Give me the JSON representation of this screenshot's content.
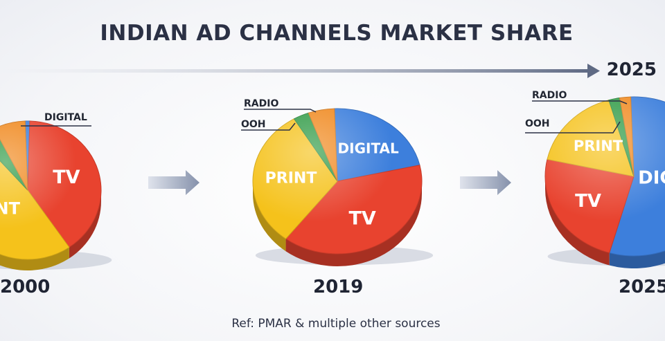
{
  "header": {
    "title": "INDIAN AD CHANNELS MARKET SHARE",
    "timeline_label": "2025"
  },
  "footer": {
    "reference": "Ref: PMAR & multiple other sources"
  },
  "colors": {
    "tv": "#e8432f",
    "print": "#f5c21b",
    "digital": "#3d7fdc",
    "ooh": "#2f9a45",
    "radio": "#f0891f"
  },
  "chart_data": [
    {
      "type": "pie",
      "year": "2000",
      "slices": [
        {
          "label": "DIGITAL",
          "value": 1,
          "color": "#3d7fdc",
          "callout": true
        },
        {
          "label": "TV",
          "value": 40,
          "color": "#e8432f"
        },
        {
          "label": "PRINT",
          "value": 48,
          "color": "#f5c21b"
        },
        {
          "label": "",
          "value": 4,
          "color": "#2f9a45"
        },
        {
          "label": "",
          "value": 7,
          "color": "#f0891f"
        }
      ]
    },
    {
      "type": "pie",
      "year": "2019",
      "slices": [
        {
          "label": "DIGITAL",
          "value": 22,
          "color": "#3d7fdc"
        },
        {
          "label": "TV",
          "value": 39,
          "color": "#e8432f"
        },
        {
          "label": "PRINT",
          "value": 31,
          "color": "#f5c21b"
        },
        {
          "label": "OOH",
          "value": 3,
          "color": "#2f9a45",
          "callout": true
        },
        {
          "label": "RADIO",
          "value": 5,
          "color": "#f0891f",
          "callout": true
        }
      ]
    },
    {
      "type": "pie",
      "year": "2025",
      "slices": [
        {
          "label": "DIGITAL",
          "value": 55,
          "color": "#3d7fdc"
        },
        {
          "label": "TV",
          "value": 24,
          "color": "#e8432f"
        },
        {
          "label": "PRINT",
          "value": 17,
          "color": "#f5c21b"
        },
        {
          "label": "OOH",
          "value": 2,
          "color": "#2f9a45",
          "callout": true
        },
        {
          "label": "RADIO",
          "value": 2,
          "color": "#f0891f",
          "callout": true
        }
      ]
    }
  ]
}
